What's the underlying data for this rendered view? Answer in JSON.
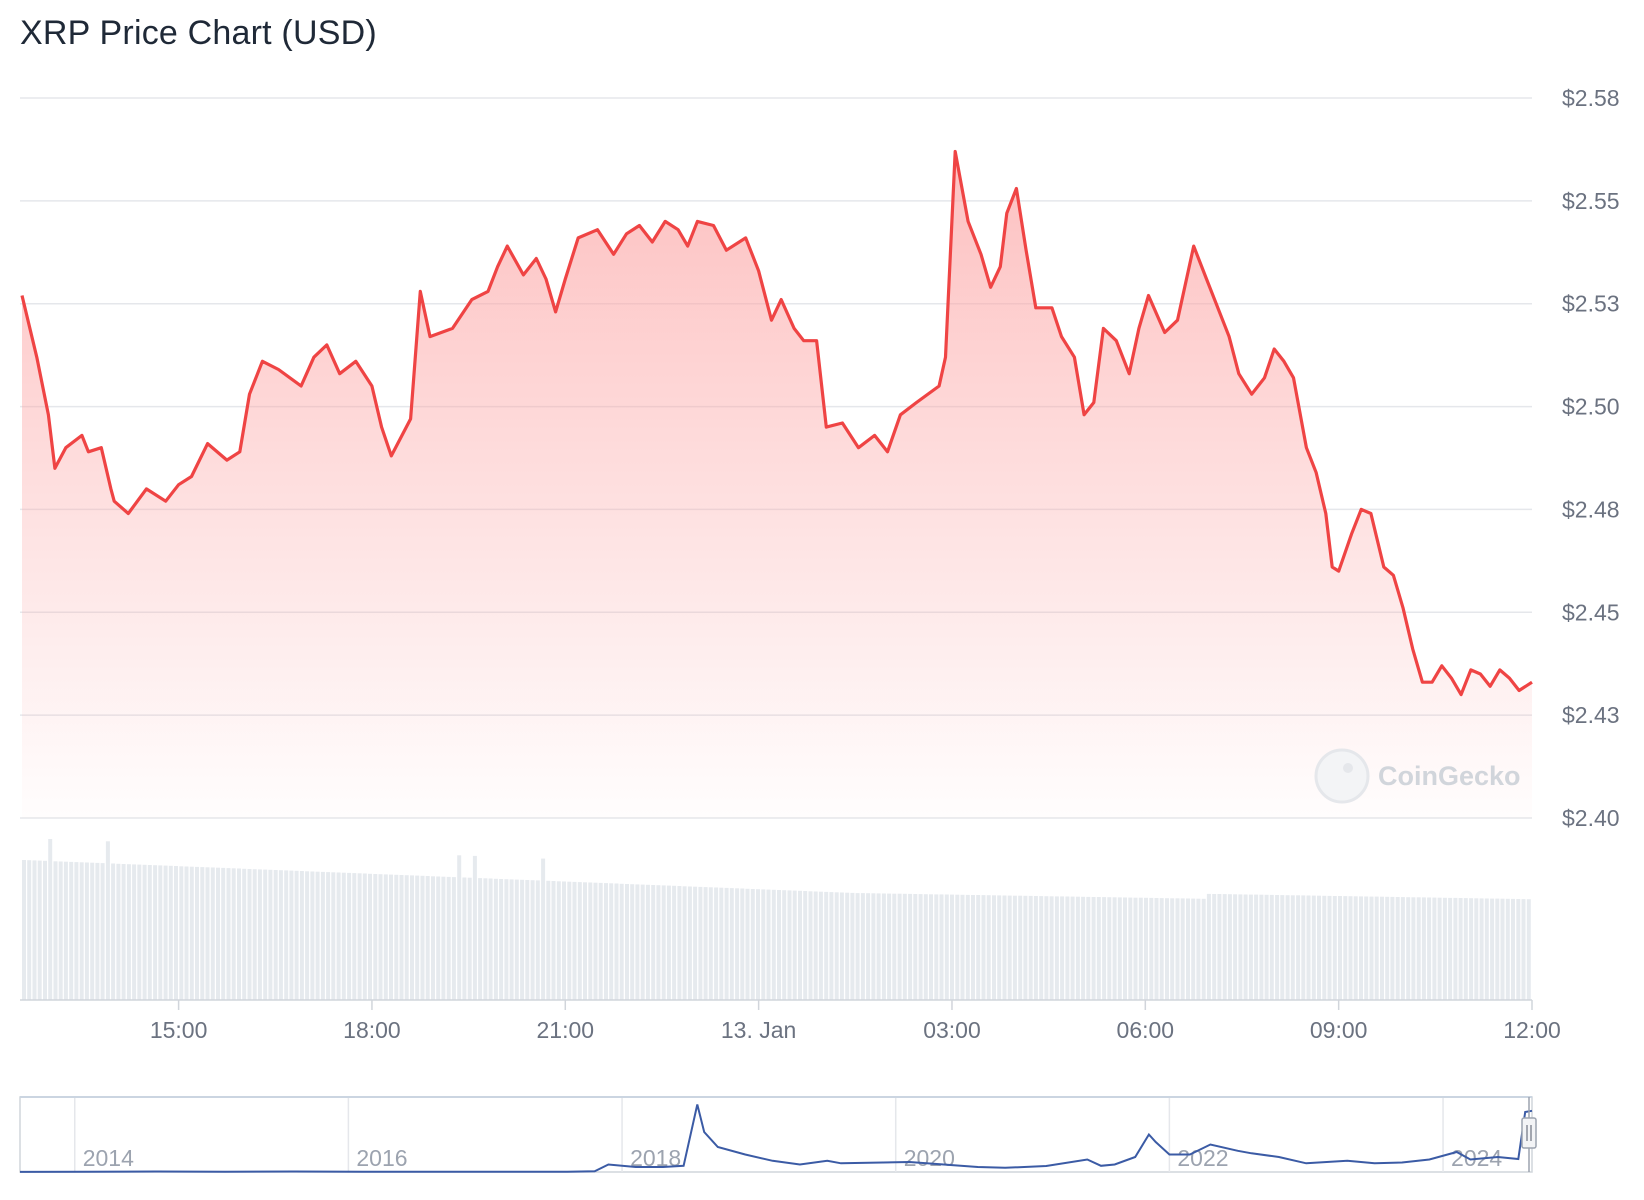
{
  "title": "XRP Price Chart (USD)",
  "watermark": "CoinGecko",
  "colors": {
    "line": "#ef4444",
    "area_top": "#fecaca",
    "grid": "#e5e7eb",
    "volume": "#e6eaee",
    "navigator_line": "#3b5ba5"
  },
  "chart_data": {
    "type": "area",
    "title": "XRP Price Chart (USD)",
    "y_ticks": [
      {
        "value": 2.575,
        "label": "$2.58"
      },
      {
        "value": 2.55,
        "label": "$2.55"
      },
      {
        "value": 2.525,
        "label": "$2.53"
      },
      {
        "value": 2.5,
        "label": "$2.50"
      },
      {
        "value": 2.475,
        "label": "$2.48"
      },
      {
        "value": 2.45,
        "label": "$2.45"
      },
      {
        "value": 2.425,
        "label": "$2.43"
      },
      {
        "value": 2.4,
        "label": "$2.40"
      }
    ],
    "ylim": [
      2.4,
      2.575
    ],
    "x_ticks": [
      "15:00",
      "18:00",
      "21:00",
      "13. Jan",
      "03:00",
      "06:00",
      "09:00",
      "12:00"
    ],
    "x_tick_hours": [
      15,
      18,
      21,
      24,
      27,
      30,
      33,
      36
    ],
    "xlim_hours": [
      12.57,
      36.0
    ],
    "series": [
      {
        "values": [
          [
            12.57,
            2.527
          ],
          [
            12.8,
            2.512
          ],
          [
            12.98,
            2.498
          ],
          [
            13.08,
            2.485
          ],
          [
            13.25,
            2.49
          ],
          [
            13.5,
            2.493
          ],
          [
            13.6,
            2.489
          ],
          [
            13.8,
            2.49
          ],
          [
            13.95,
            2.48
          ],
          [
            14.0,
            2.477
          ],
          [
            14.22,
            2.474
          ],
          [
            14.5,
            2.48
          ],
          [
            14.8,
            2.477
          ],
          [
            15.0,
            2.481
          ],
          [
            15.2,
            2.483
          ],
          [
            15.45,
            2.491
          ],
          [
            15.75,
            2.487
          ],
          [
            15.95,
            2.489
          ],
          [
            16.1,
            2.503
          ],
          [
            16.3,
            2.511
          ],
          [
            16.55,
            2.509
          ],
          [
            16.9,
            2.505
          ],
          [
            17.1,
            2.512
          ],
          [
            17.3,
            2.515
          ],
          [
            17.5,
            2.508
          ],
          [
            17.75,
            2.511
          ],
          [
            18.0,
            2.505
          ],
          [
            18.15,
            2.495
          ],
          [
            18.3,
            2.488
          ],
          [
            18.6,
            2.497
          ],
          [
            18.75,
            2.528
          ],
          [
            18.9,
            2.517
          ],
          [
            19.25,
            2.519
          ],
          [
            19.55,
            2.526
          ],
          [
            19.8,
            2.528
          ],
          [
            19.95,
            2.534
          ],
          [
            20.1,
            2.539
          ],
          [
            20.35,
            2.532
          ],
          [
            20.55,
            2.536
          ],
          [
            20.7,
            2.531
          ],
          [
            20.85,
            2.523
          ],
          [
            21.0,
            2.531
          ],
          [
            21.2,
            2.541
          ],
          [
            21.5,
            2.543
          ],
          [
            21.75,
            2.537
          ],
          [
            21.95,
            2.542
          ],
          [
            22.15,
            2.544
          ],
          [
            22.35,
            2.54
          ],
          [
            22.55,
            2.545
          ],
          [
            22.75,
            2.543
          ],
          [
            22.9,
            2.539
          ],
          [
            23.05,
            2.545
          ],
          [
            23.3,
            2.544
          ],
          [
            23.5,
            2.538
          ],
          [
            23.8,
            2.541
          ],
          [
            24.0,
            2.533
          ],
          [
            24.2,
            2.521
          ],
          [
            24.35,
            2.526
          ],
          [
            24.55,
            2.519
          ],
          [
            24.7,
            2.516
          ],
          [
            24.9,
            2.516
          ],
          [
            25.05,
            2.495
          ],
          [
            25.3,
            2.496
          ],
          [
            25.55,
            2.49
          ],
          [
            25.8,
            2.493
          ],
          [
            26.0,
            2.489
          ],
          [
            26.2,
            2.498
          ],
          [
            26.45,
            2.501
          ],
          [
            26.8,
            2.505
          ],
          [
            26.9,
            2.512
          ],
          [
            27.05,
            2.562
          ],
          [
            27.25,
            2.545
          ],
          [
            27.45,
            2.537
          ],
          [
            27.6,
            2.529
          ],
          [
            27.75,
            2.534
          ],
          [
            27.85,
            2.547
          ],
          [
            28.0,
            2.553
          ],
          [
            28.15,
            2.538
          ],
          [
            28.3,
            2.524
          ],
          [
            28.55,
            2.524
          ],
          [
            28.7,
            2.517
          ],
          [
            28.9,
            2.512
          ],
          [
            29.05,
            2.498
          ],
          [
            29.2,
            2.501
          ],
          [
            29.35,
            2.519
          ],
          [
            29.55,
            2.516
          ],
          [
            29.75,
            2.508
          ],
          [
            29.9,
            2.519
          ],
          [
            30.05,
            2.527
          ],
          [
            30.3,
            2.518
          ],
          [
            30.5,
            2.521
          ],
          [
            30.75,
            2.539
          ],
          [
            30.95,
            2.531
          ],
          [
            31.1,
            2.525
          ],
          [
            31.3,
            2.517
          ],
          [
            31.45,
            2.508
          ],
          [
            31.65,
            2.503
          ],
          [
            31.85,
            2.507
          ],
          [
            32.0,
            2.514
          ],
          [
            32.15,
            2.511
          ],
          [
            32.3,
            2.507
          ],
          [
            32.5,
            2.49
          ],
          [
            32.65,
            2.484
          ],
          [
            32.8,
            2.474
          ],
          [
            32.9,
            2.461
          ],
          [
            33.0,
            2.46
          ],
          [
            33.2,
            2.469
          ],
          [
            33.35,
            2.475
          ],
          [
            33.5,
            2.474
          ],
          [
            33.7,
            2.461
          ],
          [
            33.85,
            2.459
          ],
          [
            34.0,
            2.451
          ],
          [
            34.15,
            2.441
          ],
          [
            34.3,
            2.433
          ],
          [
            34.45,
            2.433
          ],
          [
            34.6,
            2.437
          ],
          [
            34.75,
            2.434
          ],
          [
            34.9,
            2.43
          ],
          [
            35.05,
            2.436
          ],
          [
            35.2,
            2.435
          ],
          [
            35.35,
            2.432
          ],
          [
            35.5,
            2.436
          ],
          [
            35.65,
            2.434
          ],
          [
            35.8,
            2.431
          ],
          [
            36.0,
            2.433
          ]
        ]
      }
    ],
    "navigator": {
      "x_ticks": [
        "2014",
        "2016",
        "2018",
        "2020",
        "2022",
        "2024"
      ],
      "x_tick_years": [
        2013.4,
        2015.4,
        2017.4,
        2019.4,
        2021.4,
        2023.4
      ],
      "xlim_years": [
        2013.0,
        2024.05
      ],
      "ylim": [
        0,
        3.0
      ],
      "values": [
        [
          2013.0,
          0.005
        ],
        [
          2013.5,
          0.006
        ],
        [
          2014.0,
          0.02
        ],
        [
          2014.5,
          0.01
        ],
        [
          2015.0,
          0.02
        ],
        [
          2015.5,
          0.008
        ],
        [
          2016.0,
          0.006
        ],
        [
          2016.5,
          0.007
        ],
        [
          2017.0,
          0.006
        ],
        [
          2017.2,
          0.03
        ],
        [
          2017.3,
          0.3
        ],
        [
          2017.5,
          0.2
        ],
        [
          2017.7,
          0.2
        ],
        [
          2017.85,
          0.25
        ],
        [
          2017.95,
          2.7
        ],
        [
          2018.0,
          1.6
        ],
        [
          2018.1,
          1.0
        ],
        [
          2018.3,
          0.7
        ],
        [
          2018.5,
          0.45
        ],
        [
          2018.7,
          0.3
        ],
        [
          2018.9,
          0.45
        ],
        [
          2019.0,
          0.35
        ],
        [
          2019.5,
          0.4
        ],
        [
          2019.8,
          0.28
        ],
        [
          2020.0,
          0.2
        ],
        [
          2020.2,
          0.17
        ],
        [
          2020.5,
          0.24
        ],
        [
          2020.8,
          0.5
        ],
        [
          2020.9,
          0.25
        ],
        [
          2021.0,
          0.3
        ],
        [
          2021.15,
          0.6
        ],
        [
          2021.25,
          1.5
        ],
        [
          2021.3,
          1.2
        ],
        [
          2021.4,
          0.7
        ],
        [
          2021.55,
          0.7
        ],
        [
          2021.7,
          1.1
        ],
        [
          2021.9,
          0.85
        ],
        [
          2022.0,
          0.75
        ],
        [
          2022.2,
          0.6
        ],
        [
          2022.4,
          0.35
        ],
        [
          2022.7,
          0.45
        ],
        [
          2022.9,
          0.35
        ],
        [
          2023.1,
          0.38
        ],
        [
          2023.3,
          0.5
        ],
        [
          2023.5,
          0.8
        ],
        [
          2023.6,
          0.5
        ],
        [
          2023.8,
          0.6
        ],
        [
          2023.95,
          0.52
        ],
        [
          2024.0,
          2.4
        ],
        [
          2024.05,
          2.45
        ]
      ]
    }
  }
}
